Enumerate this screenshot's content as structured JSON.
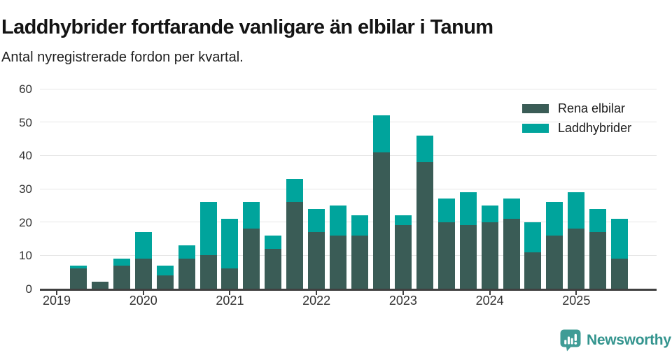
{
  "header": {
    "title": "Laddhybrider fortfarande vanligare än elbilar i Tanum",
    "subtitle": "Antal nyregistrerade fordon per kvartal."
  },
  "chart_data": {
    "type": "bar",
    "stacked": true,
    "title": "Laddhybrider fortfarande vanligare än elbilar i Tanum",
    "subtitle": "Antal nyregistrerade fordon per kvartal.",
    "xlabel": "",
    "ylabel": "",
    "ylim": [
      0,
      60
    ],
    "yticks": [
      0,
      10,
      20,
      30,
      40,
      50,
      60
    ],
    "grid": "horizontal",
    "legend_position": "top-right",
    "year_labels": [
      "2019",
      "2020",
      "2021",
      "2022",
      "2023",
      "2024",
      "2025"
    ],
    "categories": [
      "2019 Q1",
      "2019 Q2",
      "2019 Q3",
      "2019 Q4",
      "2020 Q1",
      "2020 Q2",
      "2020 Q3",
      "2020 Q4",
      "2021 Q1",
      "2021 Q2",
      "2021 Q3",
      "2021 Q4",
      "2022 Q1",
      "2022 Q2",
      "2022 Q3",
      "2022 Q4",
      "2023 Q1",
      "2023 Q2",
      "2023 Q3",
      "2023 Q4",
      "2024 Q1",
      "2024 Q2",
      "2024 Q3",
      "2024 Q4",
      "2025 Q1",
      "2025 Q2",
      "2025 Q3"
    ],
    "series": [
      {
        "name": "Rena elbilar",
        "color": "#3a5c56",
        "values": [
          0,
          6,
          2,
          7,
          9,
          4,
          9,
          10,
          6,
          18,
          12,
          26,
          17,
          16,
          16,
          41,
          19,
          38,
          20,
          19,
          20,
          21,
          11,
          16,
          18,
          17,
          9
        ]
      },
      {
        "name": "Laddhybrider",
        "color": "#00a49c",
        "values": [
          0,
          1,
          0,
          2,
          8,
          3,
          4,
          16,
          15,
          8,
          4,
          7,
          7,
          9,
          6,
          11,
          3,
          8,
          7,
          10,
          5,
          6,
          9,
          10,
          11,
          7,
          12
        ]
      }
    ],
    "totals": [
      0,
      7,
      2,
      9,
      17,
      7,
      13,
      26,
      21,
      26,
      16,
      33,
      24,
      25,
      22,
      52,
      22,
      46,
      27,
      29,
      25,
      27,
      20,
      26,
      29,
      24,
      21
    ]
  },
  "colors": {
    "axis": "#404040",
    "grid": "#e7e7e7",
    "tick_text": "#333333",
    "brand": "#33948e",
    "logo_bubble": "#3f9c96"
  },
  "footer": {
    "brand": "Newsworthy",
    "logo_icon": "bar-chart-speech-bubble-icon"
  }
}
